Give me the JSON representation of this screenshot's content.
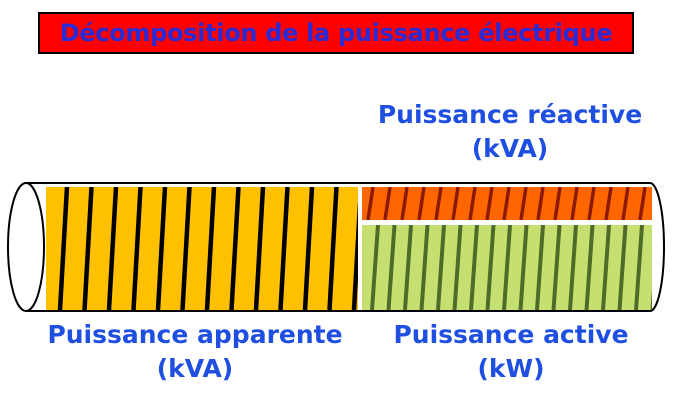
{
  "title": "Décomposition de la puissance électrique",
  "labels": {
    "reactive": {
      "line1": "Puissance réactive",
      "line2": "(kVA)"
    },
    "apparent": {
      "line1": "Puissance apparente",
      "line2": "(kVA)"
    },
    "active": {
      "line1": "Puissance active",
      "line2": "(kW)"
    }
  },
  "colors": {
    "title_bg": "#ff0000",
    "title_text": "#2b2bd6",
    "label_text": "#1f4fe0",
    "apparent_fill": "#ffc000",
    "apparent_stripe": "#000000",
    "reactive_fill": "#ff6600",
    "reactive_stripe": "#8b1a00",
    "active_fill": "#c5e070",
    "active_stripe": "#4e6b2a",
    "tube_outline": "#000000"
  }
}
